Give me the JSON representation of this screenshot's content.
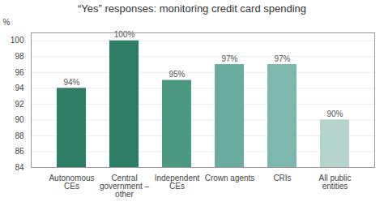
{
  "chart_data": {
    "type": "bar",
    "title": "“Yes” responses: monitoring credit card spending",
    "ylabel": "%",
    "categories": [
      "Autonomous\nCEs",
      "Central\ngovernment –\nother",
      "Independent\nCEs",
      "Crown agents",
      "CRIs",
      "All public\nentities"
    ],
    "values": [
      94,
      100,
      95,
      97,
      97,
      90
    ],
    "value_labels": [
      "94%",
      "100%",
      "95%",
      "97%",
      "97%",
      "90%"
    ],
    "colors": [
      "#2e7d65",
      "#2e7d65",
      "#4a9980",
      "#6aada0",
      "#7db8ae",
      "#b5d4cc"
    ],
    "ylim": [
      84,
      101
    ],
    "yticks": [
      84,
      86,
      88,
      90,
      92,
      94,
      96,
      98,
      100
    ],
    "grid": true,
    "data_labels": true
  }
}
